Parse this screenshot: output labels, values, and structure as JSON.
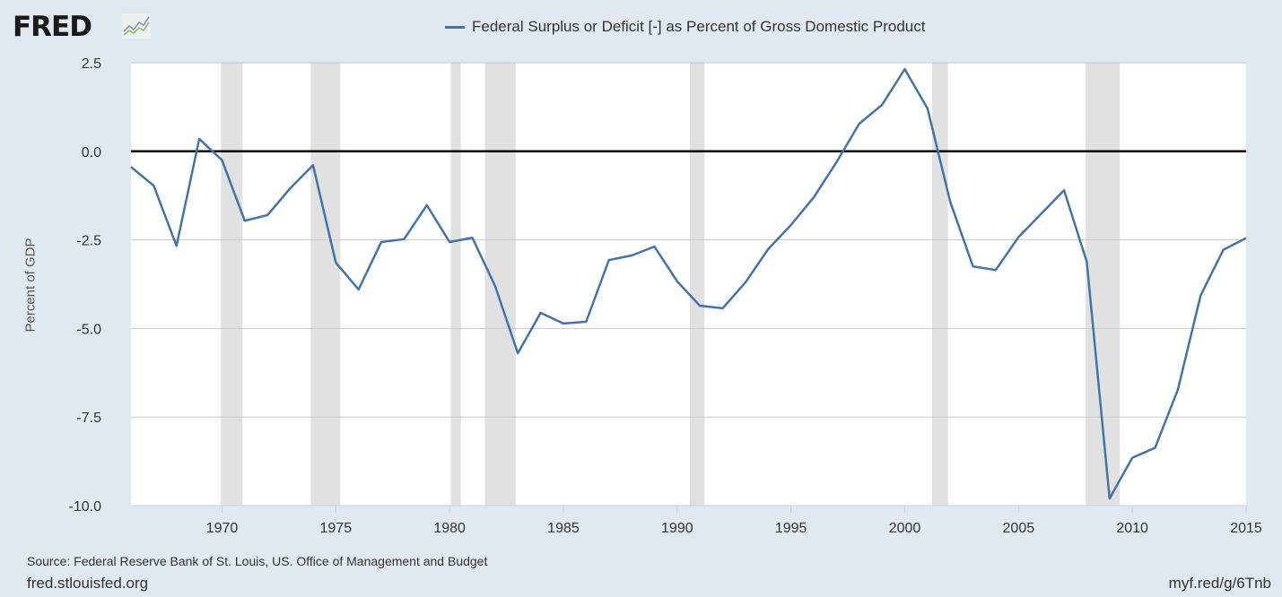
{
  "logo": {
    "text": "FRED"
  },
  "footer": {
    "source": "Source: Federal Reserve Bank of St. Louis, US. Office of Management and Budget",
    "site": "fred.stlouisfed.org",
    "short_url": "myf.red/g/6Tnb"
  },
  "chart_data": {
    "type": "line",
    "title": "",
    "xlabel": "",
    "ylabel": "Percent of GDP",
    "ylim": [
      -10,
      2.5
    ],
    "xlim": [
      1966,
      2015
    ],
    "yticks": [
      "2.5",
      "0.0",
      "-2.5",
      "-5.0",
      "-7.5",
      "-10.0"
    ],
    "xticks": [
      "1970",
      "1975",
      "1980",
      "1985",
      "1990",
      "1995",
      "2000",
      "2005",
      "2010",
      "2015"
    ],
    "grid": true,
    "legend_position": "top",
    "line_color": "#4572a7",
    "recession_color": "#e1e1e1",
    "series": [
      {
        "name": "Federal Surplus or Deficit [-] as Percent of Gross Domestic Product",
        "x": [
          1966,
          1967,
          1968,
          1969,
          1970,
          1971,
          1972,
          1973,
          1974,
          1975,
          1976,
          1977,
          1978,
          1979,
          1980,
          1981,
          1982,
          1983,
          1984,
          1985,
          1986,
          1987,
          1988,
          1989,
          1990,
          1991,
          1992,
          1993,
          1994,
          1995,
          1996,
          1997,
          1998,
          1999,
          2000,
          2001,
          2002,
          2003,
          2004,
          2005,
          2006,
          2007,
          2008,
          2009,
          2010,
          2011,
          2012,
          2013,
          2014,
          2015
        ],
        "values": [
          -0.44,
          -0.97,
          -2.67,
          0.35,
          -0.25,
          -1.96,
          -1.8,
          -1.04,
          -0.39,
          -3.14,
          -3.9,
          -2.56,
          -2.48,
          -1.52,
          -2.56,
          -2.44,
          -3.8,
          -5.7,
          -4.56,
          -4.86,
          -4.81,
          -3.07,
          -2.94,
          -2.69,
          -3.67,
          -4.36,
          -4.43,
          -3.7,
          -2.76,
          -2.08,
          -1.3,
          -0.31,
          0.78,
          1.31,
          2.32,
          1.21,
          -1.43,
          -3.25,
          -3.35,
          -2.42,
          -1.76,
          -1.1,
          -3.12,
          -9.8,
          -8.65,
          -8.37,
          -6.73,
          -4.07,
          -2.78,
          -2.45
        ]
      }
    ],
    "recessions": [
      [
        1969.95,
        1970.9
      ],
      [
        1973.9,
        1975.2
      ],
      [
        1980.05,
        1980.5
      ],
      [
        1981.55,
        1982.9
      ],
      [
        1990.55,
        1991.2
      ],
      [
        2001.2,
        2001.9
      ],
      [
        2007.95,
        2009.45
      ]
    ]
  }
}
